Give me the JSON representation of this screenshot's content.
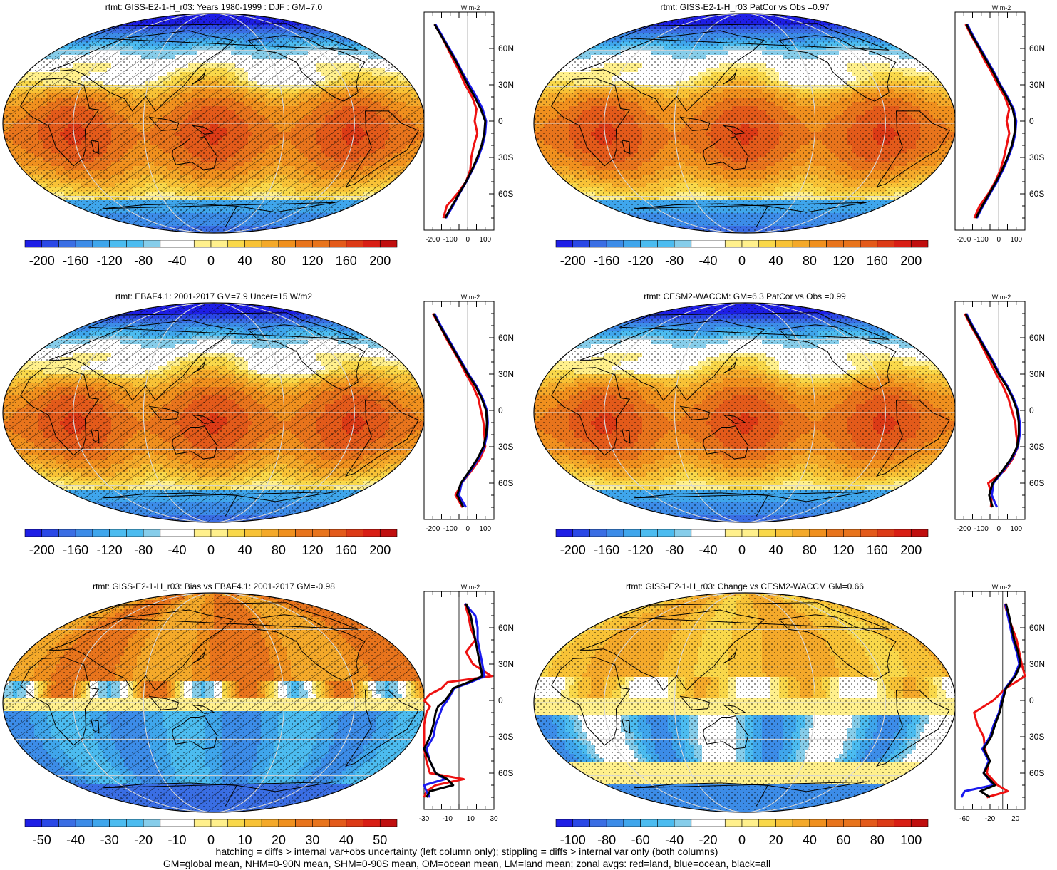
{
  "figure": {
    "footer_lines": [
      "hatching = diffs > internal var+obs uncertainty (left column only); stippling = diffs > internal var only (both columns)",
      "GM=global mean, NHM=0-90N mean, SHM=0-90S mean, OM=ocean mean, LM=land mean; zonal avgs: red=land, blue=ocean, black=all"
    ]
  },
  "chart_data": [
    {
      "type": "heatmap",
      "title": "rtmt: GISS-E2-1-H_r03: Years 1980-1999 : DJF : GM=7.0",
      "map_kind": "abs",
      "colorbar_ticks": [
        "-200",
        "-160",
        "-120",
        "-80",
        "-40",
        "0",
        "40",
        "80",
        "120",
        "160",
        "200"
      ],
      "colorbar_range": [
        -220,
        220
      ],
      "profile": {
        "unit": "W m-2",
        "lat_ticks": [
          "60N",
          "30N",
          "0",
          "30S",
          "60S"
        ],
        "x_ticks": [
          "-200",
          "-100",
          "0",
          "100"
        ],
        "xlim": [
          -250,
          150
        ],
        "series": {
          "all": {
            "lat": [
              80,
              70,
              60,
              50,
              40,
              30,
              20,
              10,
              0,
              -10,
              -20,
              -30,
              -40,
              -50,
              -60,
              -70,
              -80
            ],
            "values": [
              -190,
              -150,
              -110,
              -70,
              -35,
              0,
              40,
              75,
              100,
              95,
              80,
              55,
              25,
              -10,
              -50,
              -90,
              -130
            ]
          },
          "ocean": {
            "lat": [
              80,
              70,
              60,
              50,
              40,
              30,
              20,
              10,
              0,
              -10,
              -20,
              -30,
              -40,
              -50,
              -60,
              -70,
              -80
            ],
            "values": [
              -185,
              -145,
              -105,
              -65,
              -30,
              10,
              50,
              85,
              105,
              100,
              85,
              60,
              28,
              -8,
              -48,
              -85,
              -125
            ]
          },
          "land": {
            "lat": [
              80,
              70,
              60,
              50,
              40,
              30,
              20,
              10,
              0,
              -10,
              -20,
              -30,
              -40,
              -50,
              -60,
              -70,
              -80
            ],
            "values": [
              -190,
              -150,
              -115,
              -80,
              -45,
              -15,
              25,
              50,
              40,
              55,
              35,
              20,
              15,
              -10,
              -60,
              -120,
              -140
            ]
          }
        }
      }
    },
    {
      "type": "heatmap",
      "title": "rtmt: GISS-E2-1-H_r03 PatCor vs Obs =0.97",
      "map_kind": "abs",
      "colorbar_ticks": [
        "-200",
        "-160",
        "-120",
        "-80",
        "-40",
        "0",
        "40",
        "80",
        "120",
        "160",
        "200"
      ],
      "colorbar_range": [
        -220,
        220
      ],
      "profile": {
        "unit": "W m-2",
        "lat_ticks": [
          "60N",
          "30N",
          "0",
          "30S",
          "60S"
        ],
        "x_ticks": [
          "-200",
          "-100",
          "0",
          "100"
        ],
        "xlim": [
          -250,
          150
        ],
        "series": {
          "all": {
            "lat": [
              80,
              70,
              60,
              50,
              40,
              30,
              20,
              10,
              0,
              -10,
              -20,
              -30,
              -40,
              -50,
              -60,
              -70,
              -80
            ],
            "values": [
              -185,
              -150,
              -110,
              -70,
              -30,
              5,
              45,
              80,
              95,
              90,
              75,
              50,
              20,
              -15,
              -55,
              -95,
              -130
            ]
          },
          "ocean": {
            "lat": [
              80,
              70,
              60,
              50,
              40,
              30,
              20,
              10,
              0,
              -10,
              -20,
              -30,
              -40,
              -50,
              -60,
              -70,
              -80
            ],
            "values": [
              -180,
              -145,
              -105,
              -65,
              -25,
              10,
              50,
              85,
              100,
              95,
              80,
              55,
              25,
              -10,
              -50,
              -90,
              -125
            ]
          },
          "land": {
            "lat": [
              80,
              70,
              60,
              50,
              40,
              30,
              20,
              10,
              0,
              -10,
              -20,
              -30,
              -40,
              -50,
              -60,
              -70,
              -80
            ],
            "values": [
              -190,
              -155,
              -115,
              -80,
              -40,
              -5,
              35,
              60,
              45,
              60,
              45,
              30,
              10,
              -20,
              -60,
              -110,
              -140
            ]
          }
        }
      }
    },
    {
      "type": "heatmap",
      "title": "rtmt: EBAF4.1: 2001-2017 GM=7.9 Uncer=15 W/m2",
      "map_kind": "abs",
      "colorbar_ticks": [
        "-200",
        "-160",
        "-120",
        "-80",
        "-40",
        "0",
        "40",
        "80",
        "120",
        "160",
        "200"
      ],
      "colorbar_range": [
        -220,
        220
      ],
      "profile": {
        "unit": "W m-2",
        "lat_ticks": [
          "60N",
          "30N",
          "0",
          "30S",
          "60S"
        ],
        "x_ticks": [
          "-200",
          "-100",
          "0",
          "100"
        ],
        "xlim": [
          -250,
          150
        ],
        "series": {
          "all": {
            "lat": [
              80,
              70,
              60,
              50,
              40,
              30,
              20,
              10,
              0,
              -10,
              -20,
              -30,
              -40,
              -50,
              -60,
              -70,
              -80
            ],
            "values": [
              -195,
              -160,
              -120,
              -80,
              -40,
              0,
              45,
              80,
              105,
              110,
              105,
              90,
              55,
              10,
              -40,
              -60,
              -25
            ]
          },
          "ocean": {
            "lat": [
              80,
              70,
              60,
              50,
              40,
              30,
              20,
              10,
              0,
              -10,
              -20,
              -30,
              -40,
              -50,
              -60,
              -70,
              -80
            ],
            "values": [
              -190,
              -155,
              -115,
              -75,
              -35,
              5,
              50,
              85,
              110,
              115,
              110,
              95,
              60,
              15,
              -35,
              -50,
              -10
            ]
          },
          "land": {
            "lat": [
              80,
              70,
              60,
              50,
              40,
              30,
              20,
              10,
              0,
              -10,
              -20,
              -30,
              -40,
              -50,
              -60,
              -70,
              -80
            ],
            "values": [
              -200,
              -160,
              -125,
              -85,
              -45,
              -10,
              30,
              60,
              75,
              90,
              95,
              100,
              70,
              20,
              -35,
              -70,
              -30
            ]
          }
        }
      }
    },
    {
      "type": "heatmap",
      "title": "rtmt: CESM2-WACCM: GM=6.3 PatCor vs Obs =0.99",
      "map_kind": "abs",
      "colorbar_ticks": [
        "-200",
        "-160",
        "-120",
        "-80",
        "-40",
        "0",
        "40",
        "80",
        "120",
        "160",
        "200"
      ],
      "colorbar_range": [
        -220,
        220
      ],
      "profile": {
        "unit": "W m-2",
        "lat_ticks": [
          "60N",
          "30N",
          "0",
          "30S",
          "60S"
        ],
        "x_ticks": [
          "-200",
          "-100",
          "0",
          "100"
        ],
        "xlim": [
          -250,
          150
        ],
        "series": {
          "all": {
            "lat": [
              80,
              70,
              60,
              50,
              40,
              30,
              20,
              10,
              0,
              -10,
              -20,
              -30,
              -40,
              -50,
              -60,
              -70,
              -80
            ],
            "values": [
              -190,
              -155,
              -115,
              -75,
              -35,
              0,
              45,
              80,
              105,
              115,
              115,
              105,
              70,
              20,
              -35,
              -55,
              -35
            ]
          },
          "ocean": {
            "lat": [
              80,
              70,
              60,
              50,
              40,
              30,
              20,
              10,
              0,
              -10,
              -20,
              -30,
              -40,
              -50,
              -60,
              -70,
              -80
            ],
            "values": [
              -185,
              -150,
              -110,
              -70,
              -30,
              5,
              50,
              85,
              110,
              120,
              120,
              110,
              75,
              25,
              -30,
              -40,
              -10
            ]
          },
          "land": {
            "lat": [
              80,
              70,
              60,
              50,
              40,
              30,
              20,
              10,
              0,
              -10,
              -20,
              -30,
              -40,
              -50,
              -60,
              -70,
              -80
            ],
            "values": [
              -195,
              -160,
              -120,
              -85,
              -50,
              -15,
              25,
              55,
              75,
              95,
              100,
              110,
              80,
              30,
              -60,
              -40,
              -45
            ]
          }
        }
      }
    },
    {
      "type": "heatmap",
      "title": "rtmt: GISS-E2-1-H_r03: Bias vs EBAF4.1: 2001-2017 GM=-0.98",
      "map_kind": "bias",
      "colorbar_ticks": [
        "-50",
        "-40",
        "-30",
        "-20",
        "-10",
        "0",
        "10",
        "20",
        "30",
        "40",
        "50"
      ],
      "colorbar_range": [
        -55,
        55
      ],
      "profile": {
        "unit": "W m-2",
        "lat_ticks": [
          "60N",
          "30N",
          "0",
          "30S",
          "60S"
        ],
        "x_ticks": [
          "-30",
          "-10",
          "10",
          "30"
        ],
        "xlim": [
          -30,
          30
        ],
        "series": {
          "all": {
            "lat": [
              80,
              70,
              60,
              50,
              40,
              30,
              20,
              15,
              10,
              5,
              0,
              -5,
              -10,
              -20,
              -30,
              -40,
              -50,
              -60,
              -65,
              -70,
              -75,
              -80
            ],
            "values": [
              6,
              10,
              12,
              14,
              16,
              18,
              20,
              8,
              -5,
              -8,
              -12,
              -18,
              -20,
              -22,
              -25,
              -30,
              -25,
              -20,
              -10,
              -5,
              -25,
              -28
            ]
          },
          "ocean": {
            "lat": [
              80,
              70,
              60,
              50,
              40,
              30,
              20,
              15,
              10,
              5,
              0,
              -5,
              -10,
              -20,
              -30,
              -40,
              -50,
              -60,
              -65,
              -70,
              -75,
              -80
            ],
            "values": [
              5,
              14,
              16,
              16,
              18,
              20,
              22,
              10,
              -4,
              -7,
              -10,
              -14,
              -16,
              -20,
              -22,
              -28,
              -25,
              -20,
              -12,
              -30,
              -28,
              -25
            ]
          },
          "land": {
            "lat": [
              80,
              70,
              60,
              50,
              40,
              30,
              20,
              15,
              10,
              5,
              0,
              -5,
              -10,
              -20,
              -30,
              -40,
              -50,
              -60,
              -65,
              -70,
              -75,
              -80
            ],
            "values": [
              5,
              8,
              10,
              14,
              6,
              12,
              28,
              -10,
              -15,
              -25,
              -30,
              -25,
              -28,
              -30,
              -30,
              -30,
              -28,
              -25,
              4,
              -20,
              -28,
              -30
            ]
          }
        }
      }
    },
    {
      "type": "heatmap",
      "title": "rtmt: GISS-E2-1-H_r03: Change vs CESM2-WACCM GM=0.66",
      "map_kind": "change",
      "colorbar_ticks": [
        "-100",
        "-80",
        "-60",
        "-40",
        "-20",
        "0",
        "20",
        "40",
        "60",
        "80",
        "100"
      ],
      "colorbar_range": [
        -110,
        110
      ],
      "profile": {
        "unit": "W m-2",
        "lat_ticks": [
          "60N",
          "30N",
          "0",
          "30S",
          "60S"
        ],
        "x_ticks": [
          "-60",
          "-20",
          "20"
        ],
        "xlim": [
          -75,
          35
        ],
        "series": {
          "all": {
            "lat": [
              80,
              70,
              60,
              50,
              40,
              30,
              20,
              10,
              0,
              -10,
              -20,
              -30,
              -40,
              -50,
              -60,
              -70,
              -75,
              -80
            ],
            "values": [
              5,
              10,
              14,
              18,
              24,
              28,
              20,
              5,
              0,
              -5,
              -12,
              -18,
              -30,
              -20,
              -30,
              -12,
              -35,
              -20
            ]
          },
          "ocean": {
            "lat": [
              80,
              70,
              60,
              50,
              40,
              30,
              20,
              10,
              0,
              -10,
              -20,
              -30,
              -40,
              -50,
              -60,
              -70,
              -75,
              -80
            ],
            "values": [
              4,
              8,
              12,
              16,
              22,
              26,
              18,
              4,
              -2,
              -6,
              -14,
              -20,
              -32,
              -22,
              -30,
              -15,
              -60,
              -65
            ]
          },
          "land": {
            "lat": [
              80,
              70,
              60,
              50,
              40,
              30,
              20,
              10,
              0,
              -10,
              -20,
              -30,
              -40,
              -50,
              -60,
              -70,
              -75,
              -80
            ],
            "values": [
              3,
              8,
              15,
              22,
              26,
              30,
              35,
              5,
              -15,
              -45,
              -40,
              -30,
              -28,
              -22,
              -25,
              -8,
              8,
              -25
            ]
          }
        }
      }
    }
  ]
}
